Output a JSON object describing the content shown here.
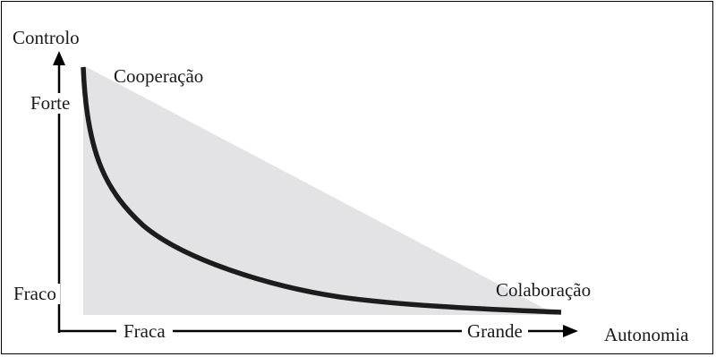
{
  "diagram": {
    "y_axis_label": "Controlo",
    "x_axis_label": "Autonomia",
    "y_high": "Forte",
    "y_low": "Fraco",
    "x_low": "Fraca",
    "x_high": "Grande",
    "top_label": "Cooperação",
    "bottom_label": "Colaboração",
    "colors": {
      "triangle_fill": "#e3e3e5",
      "curve": "#1c1c1c",
      "axis": "#000000"
    }
  }
}
